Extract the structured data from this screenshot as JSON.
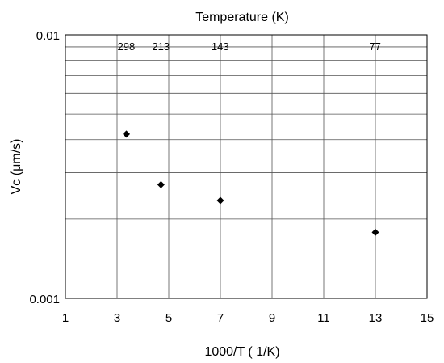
{
  "chart_data": {
    "type": "scatter",
    "title": "Temperature (K)",
    "xlabel": "1000/T ( 1/K)",
    "ylabel": "Vc (μm/s)",
    "xlim": [
      1,
      15
    ],
    "ylim": [
      0.001,
      0.01
    ],
    "yscale": "log",
    "grid": true,
    "x_ticks": [
      1,
      3,
      5,
      7,
      9,
      11,
      13,
      15
    ],
    "x_tick_labels": [
      "1",
      "3",
      "5",
      "7",
      "9",
      "11",
      "13",
      "15"
    ],
    "y_ticks": [
      0.001,
      0.01
    ],
    "y_tick_labels": [
      "0.001",
      "0.01"
    ],
    "y_minor_grid": [
      0.002,
      0.003,
      0.004,
      0.005,
      0.006,
      0.007,
      0.008,
      0.009
    ],
    "top_axis": {
      "positions": [
        3.356,
        4.695,
        6.993,
        12.987
      ],
      "labels": [
        "298",
        "213",
        "143",
        "77"
      ]
    },
    "series": [
      {
        "marker": "diamond",
        "color": "#000000",
        "points": [
          {
            "x": 3.36,
            "y": 0.0042
          },
          {
            "x": 4.7,
            "y": 0.0027
          },
          {
            "x": 7.0,
            "y": 0.00235
          },
          {
            "x": 13.0,
            "y": 0.00178
          }
        ]
      }
    ]
  }
}
